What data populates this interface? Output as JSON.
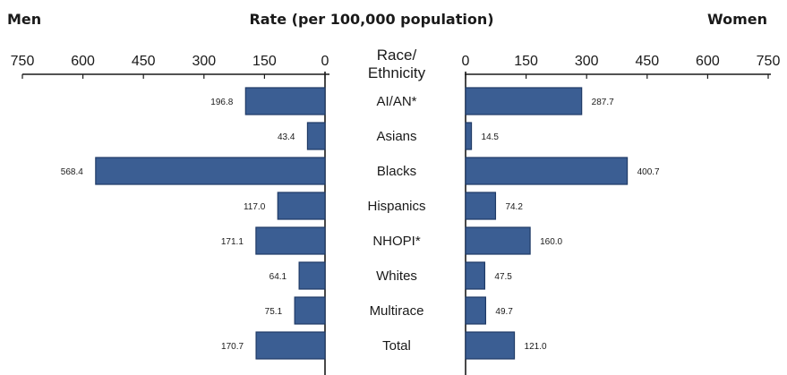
{
  "chart_data": {
    "type": "bar",
    "orientation": "horizontal-butterfly",
    "title": "Rate (per 100,000 population)",
    "left_label": "Men",
    "right_label": "Women",
    "category_header": [
      "Race/",
      "Ethnicity"
    ],
    "xlim": [
      0,
      750
    ],
    "ticks": [
      750,
      600,
      450,
      300,
      150,
      0
    ],
    "ticks_right": [
      0,
      150,
      300,
      450,
      600,
      750
    ],
    "categories": [
      "AI/AN*",
      "Asians",
      "Blacks",
      "Hispanics",
      "NHOPI*",
      "Whites",
      "Multirace",
      "Total"
    ],
    "series": [
      {
        "name": "Men",
        "values": [
          196.8,
          43.4,
          568.4,
          117.0,
          171.1,
          64.1,
          75.1,
          170.7
        ],
        "labels": [
          "196.8",
          "43.4",
          "568.4",
          "117.0",
          "171.1",
          "64.1",
          "75.1",
          "170.7"
        ]
      },
      {
        "name": "Women",
        "values": [
          287.7,
          14.5,
          400.7,
          74.2,
          160.0,
          47.5,
          49.7,
          121.0
        ],
        "labels": [
          "287.7",
          "14.5",
          "400.7",
          "74.2",
          "160.0",
          "47.5",
          "49.7",
          "121.0"
        ]
      }
    ],
    "colors": {
      "bar": "#3b5e93",
      "bar_edge": "#1f3a66",
      "axis": "#1a1a1a"
    },
    "grid": false,
    "legend": "none"
  }
}
